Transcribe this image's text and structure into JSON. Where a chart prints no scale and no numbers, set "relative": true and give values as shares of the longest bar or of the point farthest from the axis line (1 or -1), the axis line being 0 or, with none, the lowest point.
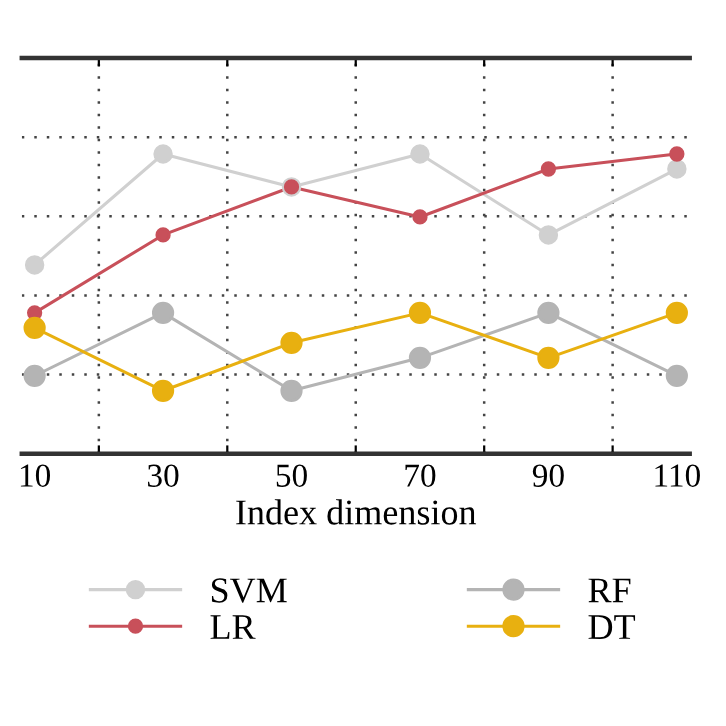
{
  "chart_data": {
    "type": "line",
    "relative": true,
    "xlabel": "Index dimension",
    "x": [
      10,
      30,
      50,
      70,
      90,
      110
    ],
    "xlim": [
      8,
      112
    ],
    "xticks": [
      {
        "value": 10,
        "label": "10"
      },
      {
        "value": 20,
        "label": null
      },
      {
        "value": 30,
        "label": "30"
      },
      {
        "value": 40,
        "label": null
      },
      {
        "value": 50,
        "label": "50"
      },
      {
        "value": 60,
        "label": null
      },
      {
        "value": 70,
        "label": "70"
      },
      {
        "value": 80,
        "label": null
      },
      {
        "value": 90,
        "label": "90"
      },
      {
        "value": 100,
        "label": null
      },
      {
        "value": 110,
        "label": "110"
      }
    ],
    "series": [
      {
        "name": "SVM",
        "color": "#d0d0d0",
        "values": [
          0.63,
          1,
          0.89,
          1,
          0.73,
          0.95
        ]
      },
      {
        "name": "LR",
        "color": "#c8505a",
        "values": [
          0.47,
          0.73,
          0.89,
          0.79,
          0.95,
          1
        ]
      },
      {
        "name": "RF",
        "color": "#b4b4b4",
        "values": [
          0.26,
          0.47,
          0.21,
          0.32,
          0.47,
          0.26
        ]
      },
      {
        "name": "DT",
        "color": "#e8b010",
        "values": [
          0.42,
          0.21,
          0.37,
          0.47,
          0.32,
          0.47
        ]
      }
    ],
    "marker": "circle",
    "line_style": "solid",
    "grid": true,
    "legend": "bottom",
    "tick_labels": "x"
  }
}
